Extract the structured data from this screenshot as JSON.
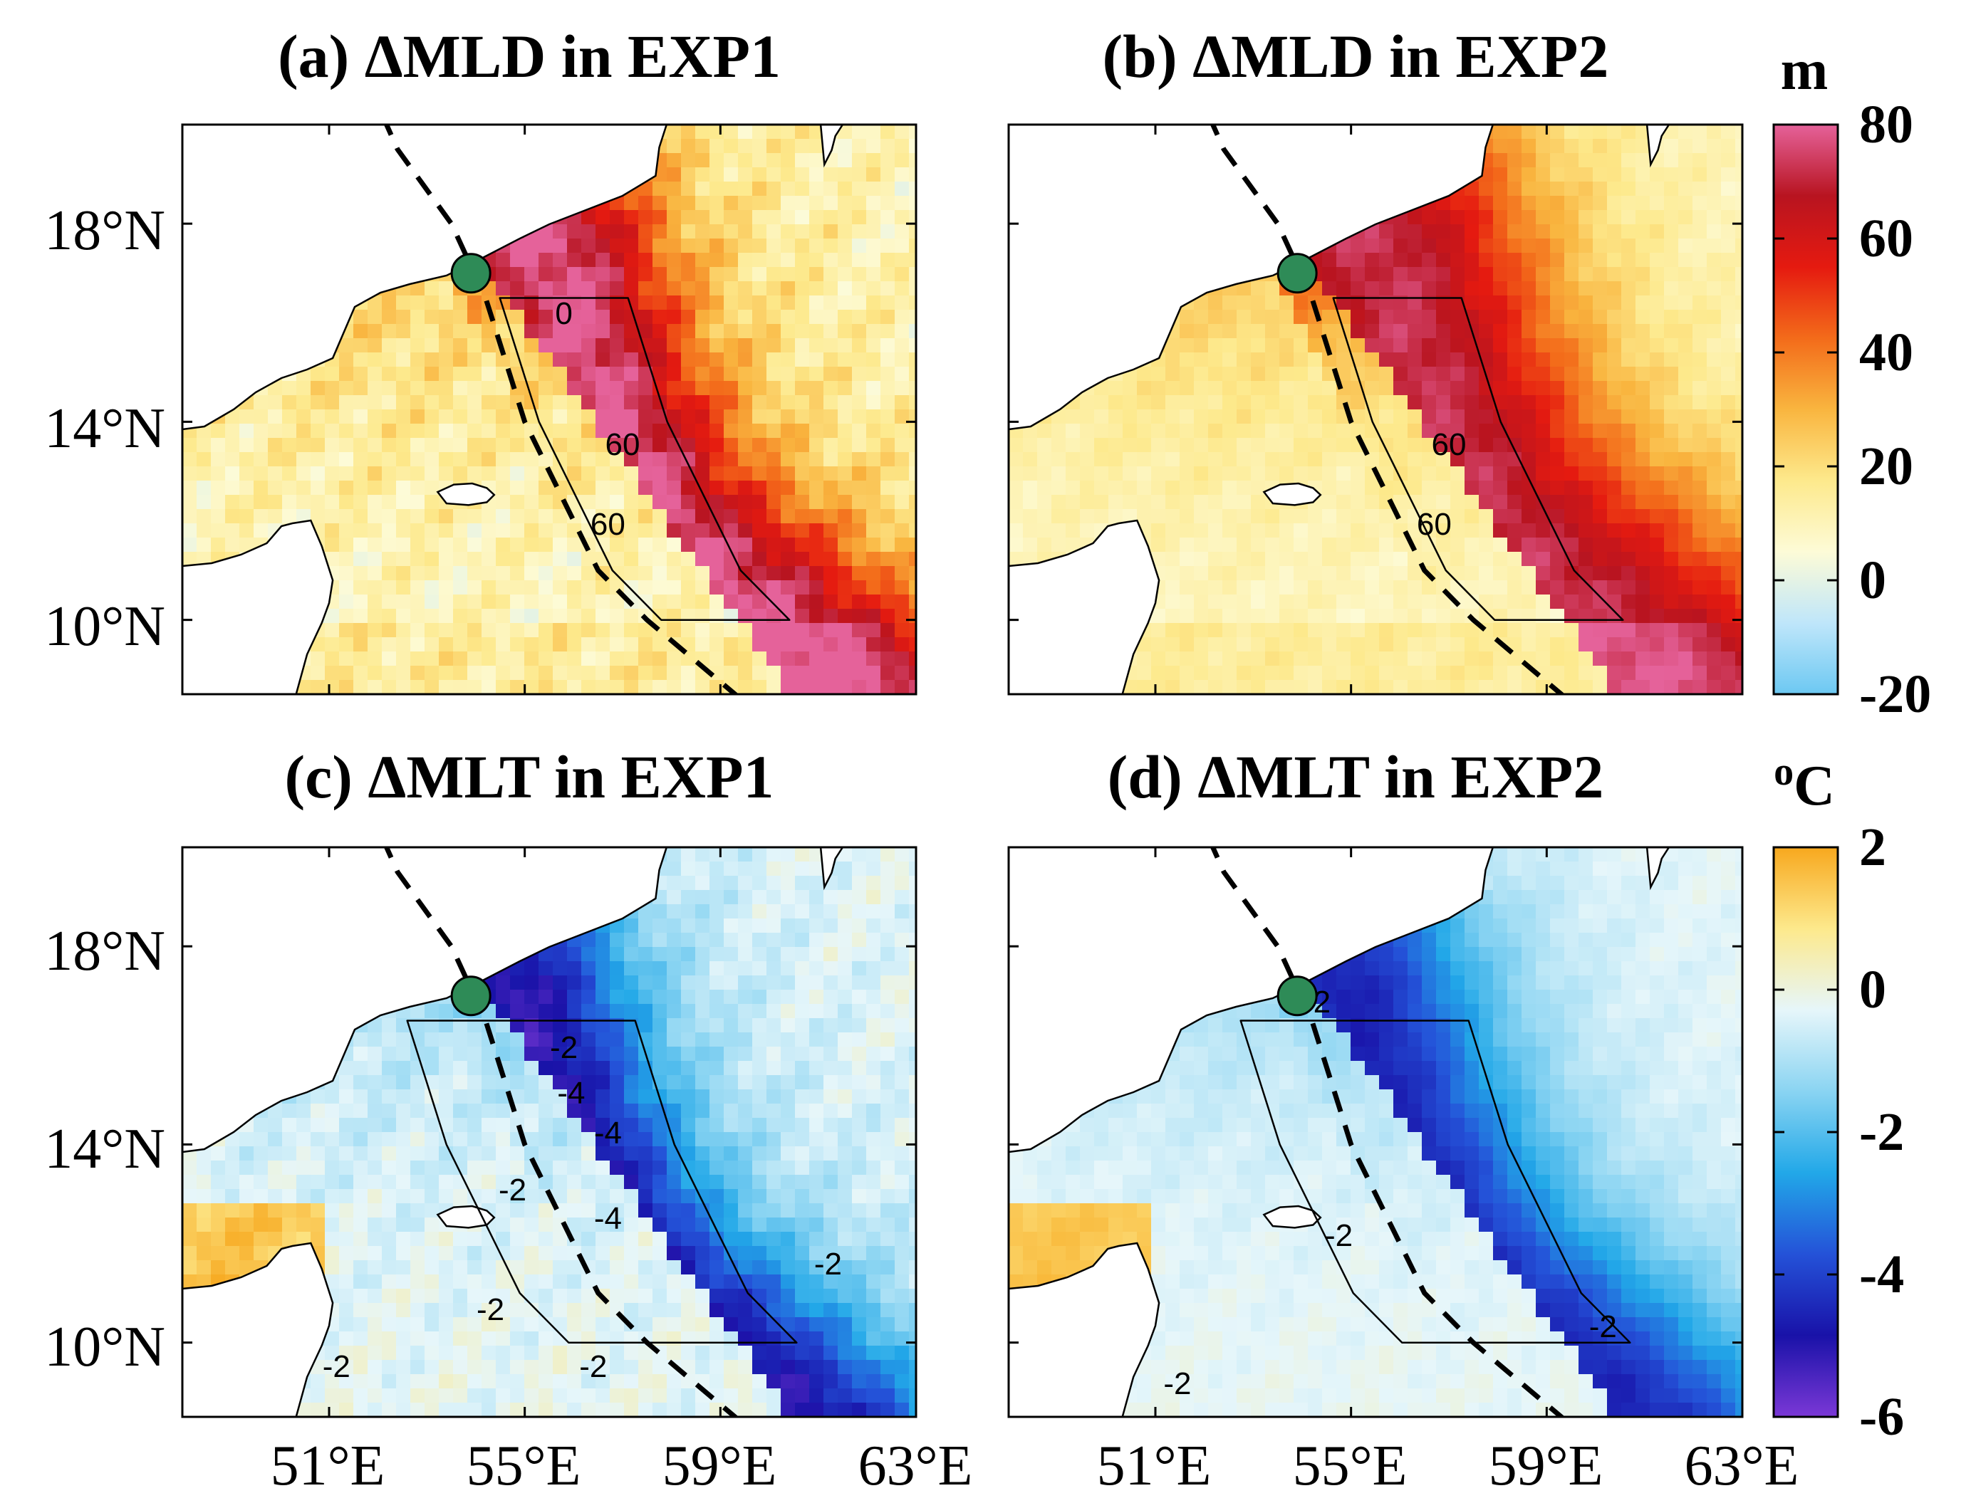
{
  "chart_data": [
    {
      "type": "heatmap",
      "panel": "a",
      "title": "(a) ΔMLD in EXP1",
      "variable": "ΔMLD",
      "x_ticks": [
        "51°E",
        "55°E",
        "59°E",
        "63°E"
      ],
      "y_ticks": [
        "18°N",
        "14°N",
        "10°N"
      ],
      "x_range": [
        48,
        63
      ],
      "y_range": [
        8.5,
        20
      ],
      "contour_labels": [
        "60",
        "60",
        "0"
      ],
      "peak_value": 70
    },
    {
      "type": "heatmap",
      "panel": "b",
      "title": "(b) ΔMLD in EXP2",
      "variable": "ΔMLD",
      "x_ticks": [
        "51°E",
        "55°E",
        "59°E",
        "63°E"
      ],
      "y_ticks": [
        "18°N",
        "14°N",
        "10°N"
      ],
      "x_range": [
        48,
        63
      ],
      "y_range": [
        8.5,
        20
      ],
      "contour_labels": [
        "60",
        "60"
      ],
      "peak_value": 58
    },
    {
      "type": "heatmap",
      "panel": "c",
      "title": "(c) ΔMLT in EXP1",
      "variable": "ΔMLT",
      "x_ticks": [
        "51°E",
        "55°E",
        "59°E",
        "63°E"
      ],
      "y_ticks": [
        "18°N",
        "14°N",
        "10°N"
      ],
      "x_range": [
        48,
        63
      ],
      "y_range": [
        8.5,
        20
      ],
      "contour_labels": [
        "-2",
        "-2",
        "-2",
        "-2",
        "-2",
        "-2",
        "-4",
        "-4",
        "-4"
      ],
      "min_value": -5
    },
    {
      "type": "heatmap",
      "panel": "d",
      "title": "(d) ΔMLT in EXP2",
      "variable": "ΔMLT",
      "x_ticks": [
        "51°E",
        "55°E",
        "59°E",
        "63°E"
      ],
      "y_ticks": [
        "18°N",
        "14°N",
        "10°N"
      ],
      "x_range": [
        48,
        63
      ],
      "y_range": [
        8.5,
        20
      ],
      "contour_labels": [
        "-2",
        "-2",
        "-2",
        "-2"
      ],
      "min_value": -4.5
    }
  ],
  "colorbars": [
    {
      "unit": "m",
      "range": [
        -20,
        80
      ],
      "ticks": [
        "80",
        "60",
        "40",
        "20",
        "0",
        "-20"
      ],
      "colors": [
        "#6cc8f2",
        "#bfe6fa",
        "#fdfbd7",
        "#fde98c",
        "#f9b53f",
        "#f36b1a",
        "#e51a10",
        "#b81420",
        "#e5629a"
      ]
    },
    {
      "unit_super": "o",
      "unit": "C",
      "range": [
        -6,
        2
      ],
      "ticks": [
        "2",
        "0",
        "-2",
        "-4",
        "-6"
      ],
      "colors": [
        "#7b38d6",
        "#1912a8",
        "#2452d8",
        "#22a8e8",
        "#8ad4f2",
        "#e6f6fa",
        "#fde98c",
        "#f7a81e"
      ]
    }
  ],
  "track": {
    "lon": [
      51.5,
      52.4,
      53.5,
      54.2,
      55.0,
      56.5,
      57.5,
      60.5
    ],
    "lat": [
      21.5,
      19.5,
      18.0,
      16.5,
      14.0,
      11.0,
      10.0,
      7.5
    ]
  },
  "landfall_marker": {
    "lon": 53.9,
    "lat": 17.0,
    "color": "#2e8b57"
  },
  "colors": {
    "land": "#ffffff",
    "coast": "#000000"
  }
}
